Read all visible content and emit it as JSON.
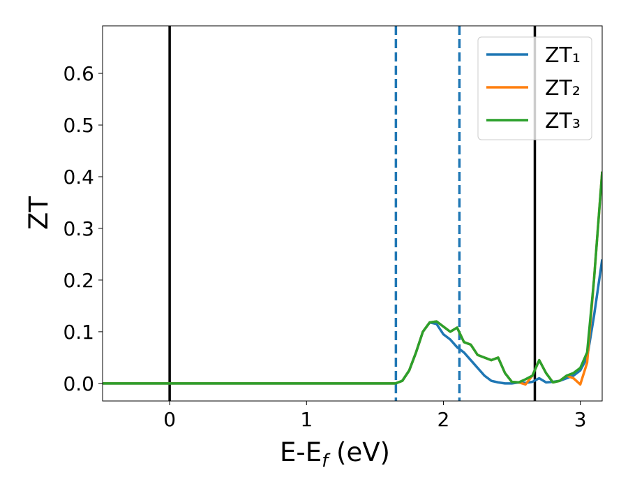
{
  "chart_data": {
    "type": "line",
    "x_label": [
      "E-E",
      "f",
      " (eV)"
    ],
    "y_label": "ZT",
    "x": [
      -0.49,
      1.6,
      1.65,
      1.7,
      1.75,
      1.8,
      1.85,
      1.9,
      1.95,
      2.0,
      2.05,
      2.1,
      2.15,
      2.2,
      2.25,
      2.3,
      2.35,
      2.4,
      2.45,
      2.5,
      2.55,
      2.6,
      2.65,
      2.7,
      2.75,
      2.8,
      2.85,
      2.9,
      2.95,
      3.0,
      3.05,
      3.1,
      3.16
    ],
    "series": [
      {
        "name": "ZT₁",
        "color": "#1f77b4",
        "values": [
          0,
          0,
          0,
          0.005,
          0.025,
          0.06,
          0.1,
          0.118,
          0.115,
          0.095,
          0.085,
          0.07,
          0.06,
          0.045,
          0.03,
          0.015,
          0.005,
          0.002,
          0,
          0,
          0.002,
          0.001,
          0.003,
          0.01,
          0.002,
          0.003,
          0.005,
          0.01,
          0.015,
          0.025,
          0.05,
          0.13,
          0.24
        ]
      },
      {
        "name": "ZT₂",
        "color": "#ff7f0e",
        "values": [
          0,
          0,
          0,
          0.005,
          0.025,
          0.06,
          0.1,
          0.118,
          0.12,
          0.11,
          0.1,
          0.108,
          0.08,
          0.075,
          0.055,
          0.05,
          0.045,
          0.05,
          0.02,
          0.003,
          0.002,
          -0.002,
          0.015,
          0.045,
          0.02,
          0.002,
          0.005,
          0.015,
          0.01,
          -0.002,
          0.04,
          0.2,
          0.41
        ]
      },
      {
        "name": "ZT₃",
        "color": "#2ca02c",
        "values": [
          0,
          0,
          0,
          0.005,
          0.025,
          0.06,
          0.1,
          0.118,
          0.12,
          0.11,
          0.1,
          0.108,
          0.08,
          0.075,
          0.055,
          0.05,
          0.045,
          0.05,
          0.02,
          0.003,
          0.002,
          0.008,
          0.015,
          0.045,
          0.02,
          0.002,
          0.005,
          0.015,
          0.02,
          0.03,
          0.06,
          0.2,
          0.41
        ]
      }
    ],
    "vlines": [
      {
        "x": 0,
        "color": "#000000",
        "dashed": false
      },
      {
        "x": 1.653,
        "color": "#1f77b4",
        "dashed": true
      },
      {
        "x": 2.117,
        "color": "#1f77b4",
        "dashed": true
      },
      {
        "x": 2.668,
        "color": "#000000",
        "dashed": false
      }
    ],
    "xlim": [
      -0.49,
      3.16
    ],
    "ylim": [
      -0.034,
      0.692
    ],
    "xticks": [
      0,
      1,
      2,
      3
    ],
    "yticks": [
      {
        "value": 0,
        "label": "0.0"
      },
      {
        "value": 0.1,
        "label": "0.1"
      },
      {
        "value": 0.2,
        "label": "0.2"
      },
      {
        "value": 0.3,
        "label": "0.3"
      },
      {
        "value": 0.4,
        "label": "0.4"
      },
      {
        "value": 0.5,
        "label": "0.5"
      },
      {
        "value": 0.6,
        "label": "0.6"
      }
    ],
    "legend": "upper right"
  }
}
